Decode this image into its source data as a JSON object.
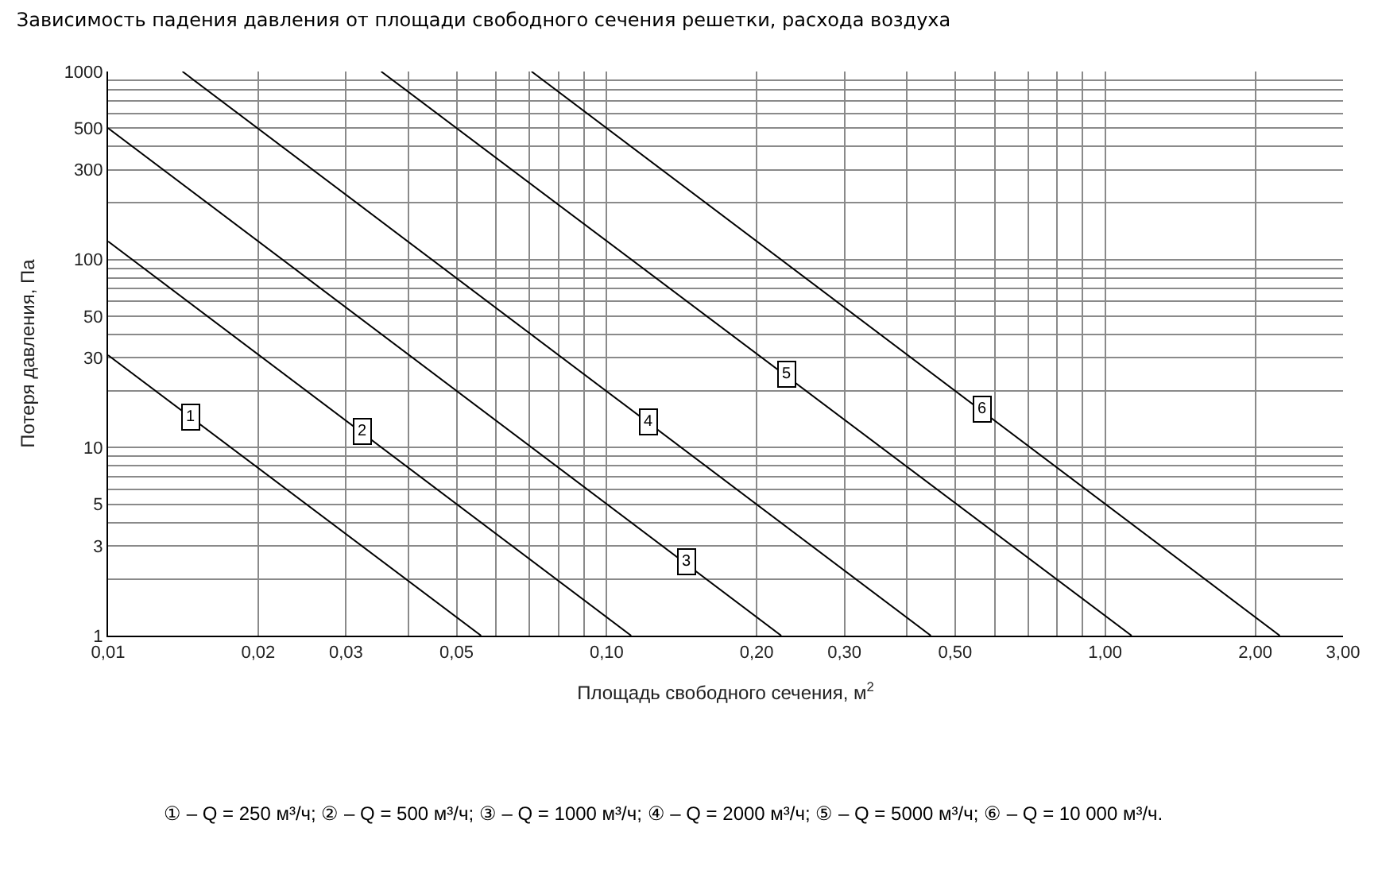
{
  "chart_data": {
    "type": "line",
    "title": "Зависимость падения давления от площади свободного сечения решетки, расхода воздуха",
    "xlabel": "Площадь свободного сечения, м$^{2}$",
    "ylabel": "Потеря давления, Па",
    "log": "xy",
    "grid": true,
    "xlim": [
      0.01,
      3
    ],
    "ylim": [
      1,
      1000
    ],
    "xticks": [
      {
        "value": 0.01,
        "label": "0,01"
      },
      {
        "value": 0.02,
        "label": "0,02"
      },
      {
        "value": 0.03,
        "label": "0,03"
      },
      {
        "value": 0.04,
        "label": null
      },
      {
        "value": 0.05,
        "label": "0,05"
      },
      {
        "value": 0.06,
        "label": null
      },
      {
        "value": 0.07,
        "label": null
      },
      {
        "value": 0.08,
        "label": null
      },
      {
        "value": 0.09,
        "label": null
      },
      {
        "value": 0.1,
        "label": "0,10"
      },
      {
        "value": 0.2,
        "label": "0,20"
      },
      {
        "value": 0.3,
        "label": "0,30"
      },
      {
        "value": 0.4,
        "label": null
      },
      {
        "value": 0.5,
        "label": "0,50"
      },
      {
        "value": 0.6,
        "label": null
      },
      {
        "value": 0.7,
        "label": null
      },
      {
        "value": 0.8,
        "label": null
      },
      {
        "value": 0.9,
        "label": null
      },
      {
        "value": 1,
        "label": "1,00"
      },
      {
        "value": 2,
        "label": "2,00"
      },
      {
        "value": 3,
        "label": "3,00"
      }
    ],
    "yticks": [
      1,
      {
        "value": 2,
        "label": null
      },
      3,
      {
        "value": 4,
        "label": null
      },
      5,
      {
        "value": 6,
        "label": null
      },
      {
        "value": 7,
        "label": null
      },
      {
        "value": 8,
        "label": null
      },
      {
        "value": 9,
        "label": null
      },
      10,
      {
        "value": 20,
        "label": null
      },
      30,
      {
        "value": 40,
        "label": null
      },
      50,
      {
        "value": 60,
        "label": null
      },
      {
        "value": 70,
        "label": null
      },
      {
        "value": 80,
        "label": null
      },
      {
        "value": 90,
        "label": null
      },
      100,
      {
        "value": 200,
        "label": null
      },
      300,
      {
        "value": 400,
        "label": null
      },
      500,
      {
        "value": 600,
        "label": null
      },
      {
        "value": 700,
        "label": null
      },
      {
        "value": 800,
        "label": null
      },
      {
        "value": 900,
        "label": null
      },
      1000
    ],
    "line_style": "solid",
    "series": [
      {
        "color": "#000000",
        "x": [
          0.01,
          0.056
        ],
        "values": [
          31,
          1
        ]
      },
      {
        "color": "#000000",
        "x": [
          0.01,
          0.112
        ],
        "values": [
          125,
          1
        ]
      },
      {
        "color": "#000000",
        "x": [
          0.01,
          0.224
        ],
        "values": [
          500,
          1
        ]
      },
      {
        "color": "#000000",
        "x": [
          0.0141,
          0.447
        ],
        "values": [
          1000,
          1
        ]
      },
      {
        "color": "#000000",
        "x": [
          0.0353,
          1.13
        ],
        "values": [
          1000,
          1
        ]
      },
      {
        "color": "#000000",
        "x": [
          0.0707,
          2.24
        ],
        "values": [
          1000,
          1
        ]
      }
    ],
    "annotations": [
      {
        "text": "1",
        "x": 0.0146,
        "y": 14.6
      },
      {
        "text": "2",
        "x": 0.0323,
        "y": 12.2
      },
      {
        "text": "3",
        "x": 0.145,
        "y": 2.46
      },
      {
        "text": "4",
        "x": 0.121,
        "y": 13.8
      },
      {
        "text": "5",
        "x": 0.229,
        "y": 24.7
      },
      {
        "text": "6",
        "x": 0.566,
        "y": 16
      },
      "① – Q = 250 м³/ч; ② – Q = 500 м³/ч; ③ – Q = 1000 м³/ч; ④ – Q = 2000 м³/ч; ⑤ – Q = 5000 м³/ч; ⑥ – Q = 10 000 м³/ч."
    ]
  }
}
